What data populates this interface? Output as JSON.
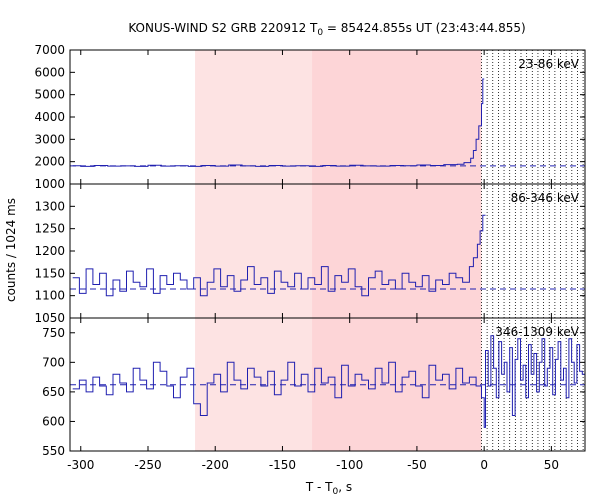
{
  "chart_data": {
    "type": "line",
    "title_prefix": "KONUS-WIND S2 GRB 220912 T",
    "title_subscript": "0",
    "title_suffix": " = 85424.855s UT (23:43:44.855)",
    "xlabel_prefix": "T - T",
    "xlabel_subscript": "0",
    "xlabel_suffix": ", s",
    "ylabel": "counts / 1024 ms",
    "xlim": [
      -308,
      75
    ],
    "x_ticks": [
      -300,
      -250,
      -200,
      -150,
      -100,
      -50,
      0,
      50
    ],
    "x_tick_labels": [
      "-300",
      "-250",
      "-200",
      "-150",
      "-100",
      "-50",
      "0",
      "50"
    ],
    "shaded_regions": [
      {
        "from": -215,
        "to": -128,
        "color": "#fde3e3"
      },
      {
        "from": -128,
        "to": -2,
        "color": "#fdd5d7"
      }
    ],
    "series_color": "#2020b0",
    "panels": [
      {
        "name": "23-86 keV",
        "label": "23-86 keV",
        "ylim": [
          1000,
          7000
        ],
        "y_ticks": [
          1000,
          2000,
          3000,
          4000,
          5000,
          6000,
          7000
        ],
        "y_tick_labels": [
          "1000",
          "2000",
          "3000",
          "4000",
          "5000",
          "6000",
          "7000"
        ],
        "background": 1810,
        "x": [
          -306,
          -300,
          -290,
          -280,
          -270,
          -260,
          -250,
          -240,
          -230,
          -220,
          -210,
          -200,
          -190,
          -180,
          -170,
          -160,
          -150,
          -140,
          -130,
          -120,
          -110,
          -100,
          -90,
          -80,
          -70,
          -60,
          -50,
          -40,
          -30,
          -20,
          -15,
          -10,
          -8,
          -6,
          -4,
          -2,
          -1
        ],
        "values": [
          1820,
          1790,
          1830,
          1800,
          1810,
          1790,
          1840,
          1800,
          1820,
          1790,
          1830,
          1800,
          1850,
          1810,
          1790,
          1830,
          1800,
          1820,
          1790,
          1830,
          1800,
          1840,
          1810,
          1800,
          1830,
          1820,
          1850,
          1830,
          1870,
          1880,
          1960,
          2150,
          2500,
          3000,
          3600,
          4600,
          5700
        ]
      },
      {
        "name": "86-346 keV",
        "label": "86-346 keV",
        "ylim": [
          1050,
          1350
        ],
        "y_ticks": [
          1050,
          1100,
          1150,
          1200,
          1250,
          1300
        ],
        "y_tick_labels": [
          "1050",
          "1100",
          "1150",
          "1200",
          "1250",
          "1300"
        ],
        "background": 1115,
        "x": [
          -306,
          -301,
          -296,
          -291,
          -286,
          -281,
          -276,
          -271,
          -266,
          -261,
          -256,
          -251,
          -246,
          -241,
          -236,
          -231,
          -226,
          -221,
          -216,
          -211,
          -206,
          -201,
          -196,
          -191,
          -186,
          -181,
          -176,
          -171,
          -166,
          -161,
          -156,
          -151,
          -146,
          -141,
          -136,
          -131,
          -126,
          -121,
          -116,
          -111,
          -106,
          -101,
          -96,
          -91,
          -86,
          -81,
          -76,
          -71,
          -66,
          -61,
          -56,
          -51,
          -46,
          -41,
          -36,
          -31,
          -26,
          -21,
          -16,
          -11,
          -8,
          -5,
          -3,
          -1
        ],
        "values": [
          1140,
          1105,
          1160,
          1125,
          1150,
          1100,
          1135,
          1110,
          1155,
          1130,
          1120,
          1160,
          1105,
          1145,
          1125,
          1150,
          1135,
          1115,
          1140,
          1100,
          1130,
          1160,
          1120,
          1145,
          1110,
          1135,
          1165,
          1125,
          1140,
          1105,
          1155,
          1130,
          1120,
          1150,
          1115,
          1140,
          1125,
          1165,
          1110,
          1145,
          1130,
          1160,
          1120,
          1100,
          1140,
          1155,
          1125,
          1135,
          1115,
          1150,
          1130,
          1120,
          1145,
          1110,
          1135,
          1125,
          1150,
          1140,
          1130,
          1165,
          1185,
          1215,
          1245,
          1280
        ]
      },
      {
        "name": "346-1309 keV",
        "label": "346-1309 keV",
        "ylim": [
          550,
          775
        ],
        "y_ticks": [
          550,
          600,
          650,
          700,
          750
        ],
        "y_tick_labels": [
          "550",
          "600",
          "650",
          "700",
          "750"
        ],
        "background": 662,
        "x": [
          -306,
          -301,
          -296,
          -291,
          -286,
          -281,
          -276,
          -271,
          -266,
          -261,
          -256,
          -251,
          -246,
          -241,
          -236,
          -231,
          -226,
          -221,
          -216,
          -211,
          -206,
          -201,
          -196,
          -191,
          -186,
          -181,
          -176,
          -171,
          -166,
          -161,
          -156,
          -151,
          -146,
          -141,
          -136,
          -131,
          -126,
          -121,
          -116,
          -111,
          -106,
          -101,
          -96,
          -91,
          -86,
          -81,
          -76,
          -71,
          -66,
          -61,
          -56,
          -51,
          -46,
          -41,
          -36,
          -31,
          -26,
          -21,
          -16,
          -11,
          -6,
          -2,
          0,
          1,
          3,
          5,
          7,
          9,
          11,
          13,
          15,
          17,
          19,
          21,
          23,
          25,
          27,
          29,
          31,
          33,
          35,
          37,
          39,
          41,
          43,
          45,
          47,
          49,
          51,
          53,
          55,
          57,
          59,
          61,
          63,
          65,
          67,
          69,
          71,
          73
        ],
        "values": [
          655,
          670,
          650,
          675,
          660,
          645,
          680,
          665,
          650,
          690,
          670,
          655,
          700,
          685,
          660,
          640,
          675,
          690,
          630,
          610,
          665,
          680,
          650,
          700,
          670,
          655,
          690,
          675,
          660,
          685,
          645,
          670,
          700,
          660,
          680,
          650,
          690,
          665,
          675,
          640,
          695,
          660,
          680,
          670,
          655,
          690,
          665,
          700,
          650,
          675,
          685,
          660,
          640,
          695,
          670,
          680,
          655,
          690,
          665,
          675,
          660,
          640,
          590,
          720,
          660,
          745,
          690,
          640,
          735,
          680,
          700,
          650,
          725,
          610,
          705,
          740,
          670,
          695,
          640,
          730,
          680,
          715,
          650,
          700,
          740,
          660,
          690,
          725,
          645,
          705,
          735,
          670,
          690,
          640,
          740,
          700,
          665,
          730,
          685,
          680
        ]
      }
    ]
  }
}
